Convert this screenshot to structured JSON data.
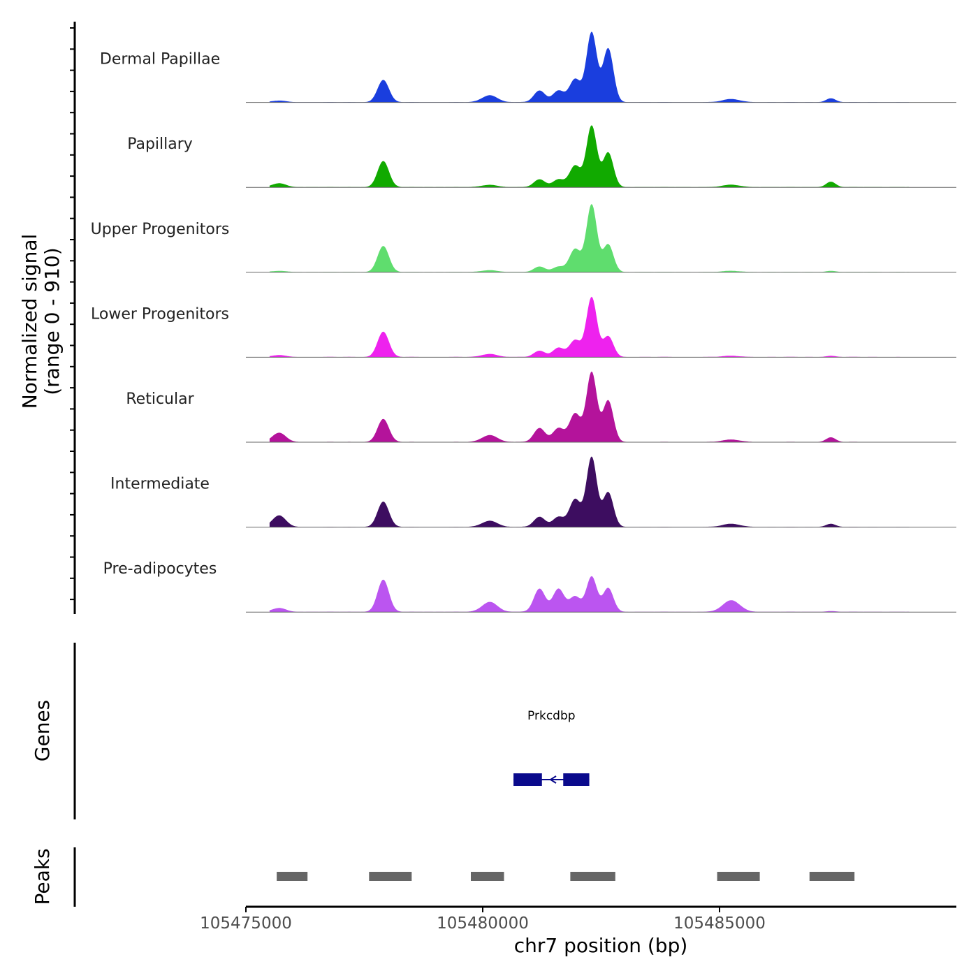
{
  "chart_data": {
    "type": "area",
    "chromosome": "chr7",
    "xlabel": "chr7 position (bp)",
    "ylabel_line1": "Normalized signal",
    "ylabel_line2": "(range 0 - 910)",
    "y_range": [
      0,
      910
    ],
    "x_range": [
      105475000,
      105490000
    ],
    "x_ticks": [
      {
        "value": 105475000,
        "label": "105475000"
      },
      {
        "value": 105480000,
        "label": "105480000"
      },
      {
        "value": 105485000,
        "label": "105485000"
      }
    ],
    "genes_label": "Genes",
    "peaks_label": "Peaks",
    "signal_peaks_bp": [
      105475700,
      105477900,
      105480150,
      105481200,
      105481600,
      105481950,
      105482300,
      105482650,
      105485250,
      105487350
    ],
    "tracks": [
      {
        "name": "Dermal Papillae",
        "color": "#1a3ede",
        "heights": [
          20,
          290,
          90,
          150,
          150,
          300,
          910,
          700,
          40,
          50
        ]
      },
      {
        "name": "Papillary",
        "color": "#11aa00",
        "heights": [
          50,
          340,
          30,
          100,
          100,
          280,
          800,
          450,
          30,
          70
        ]
      },
      {
        "name": "Upper Progenitors",
        "color": "#5fdd6e",
        "heights": [
          15,
          340,
          25,
          70,
          70,
          300,
          880,
          360,
          15,
          15
        ]
      },
      {
        "name": "Lower Progenitors",
        "color": "#ee22ee",
        "heights": [
          25,
          330,
          40,
          80,
          120,
          220,
          780,
          270,
          15,
          15
        ]
      },
      {
        "name": "Reticular",
        "color": "#b4139b",
        "heights": [
          120,
          300,
          90,
          180,
          180,
          370,
          910,
          540,
          30,
          60
        ]
      },
      {
        "name": "Intermediate",
        "color": "#3d0d60",
        "heights": [
          150,
          330,
          80,
          130,
          130,
          360,
          910,
          450,
          40,
          40
        ]
      },
      {
        "name": "Pre-adipocytes",
        "color": "#bb55f0",
        "heights": [
          50,
          420,
          130,
          300,
          300,
          200,
          460,
          310,
          150,
          10
        ]
      }
    ],
    "genes": [
      {
        "name": "Prkcdbp",
        "start": 105480650,
        "end": 105482250,
        "strand": "-",
        "exons": [
          [
            105480650,
            105481250
          ],
          [
            105481700,
            105482250
          ]
        ]
      }
    ],
    "peaks": [
      {
        "start": 105475650,
        "end": 105476300
      },
      {
        "start": 105477600,
        "end": 105478500
      },
      {
        "start": 105479750,
        "end": 105480450
      },
      {
        "start": 105481850,
        "end": 105482800
      },
      {
        "start": 105484950,
        "end": 105485850
      },
      {
        "start": 105486900,
        "end": 105487850
      }
    ]
  }
}
